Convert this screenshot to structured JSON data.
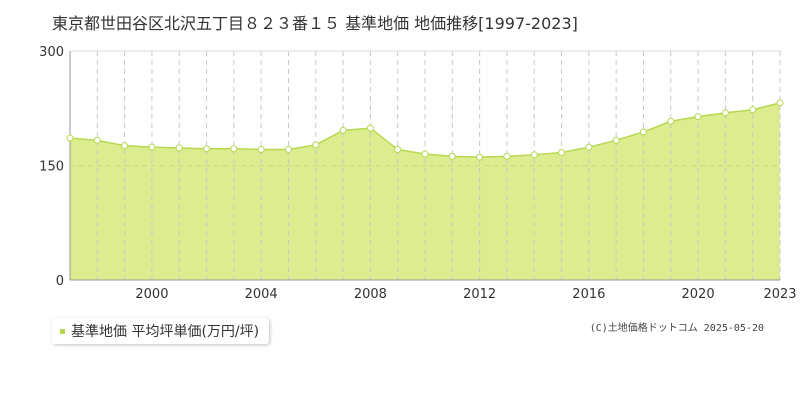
{
  "chart_title": "東京都世田谷区北沢五丁目８２３番１５ 基準地価 地価推移[1997-2023]",
  "legend_label": "基準地価 平均坪単価(万円/坪)",
  "copyright": "(C)土地価格ドットコム 2025-05-20",
  "colors": {
    "fill": "#dcec8f",
    "line": "#b7d84f",
    "marker_fill": "#ffffff",
    "grid_dash": "#c8c8c8",
    "axis": "#999999",
    "ref_line": "#c4d98a"
  },
  "chart_data": {
    "type": "area",
    "x": [
      1997,
      1998,
      1999,
      2000,
      2001,
      2002,
      2003,
      2004,
      2005,
      2006,
      2007,
      2008,
      2009,
      2010,
      2011,
      2012,
      2013,
      2014,
      2015,
      2016,
      2017,
      2018,
      2019,
      2020,
      2021,
      2022,
      2023
    ],
    "series": [
      {
        "values": [
          186,
          183,
          176,
          174,
          173,
          172,
          172,
          171,
          171,
          177,
          196,
          199,
          171,
          165,
          162,
          161,
          162,
          164,
          167,
          174,
          183,
          194,
          208,
          214,
          219,
          223,
          232
        ]
      }
    ],
    "xlim": [
      1997,
      2023
    ],
    "ylim": [
      0,
      300
    ],
    "x_ticks": [
      "2000",
      "2004",
      "2008",
      "2012",
      "2016",
      "2020",
      "2023"
    ],
    "y_ticks": [
      "0",
      "150",
      "300"
    ],
    "grid": true,
    "legend_position": "bottom-left"
  }
}
